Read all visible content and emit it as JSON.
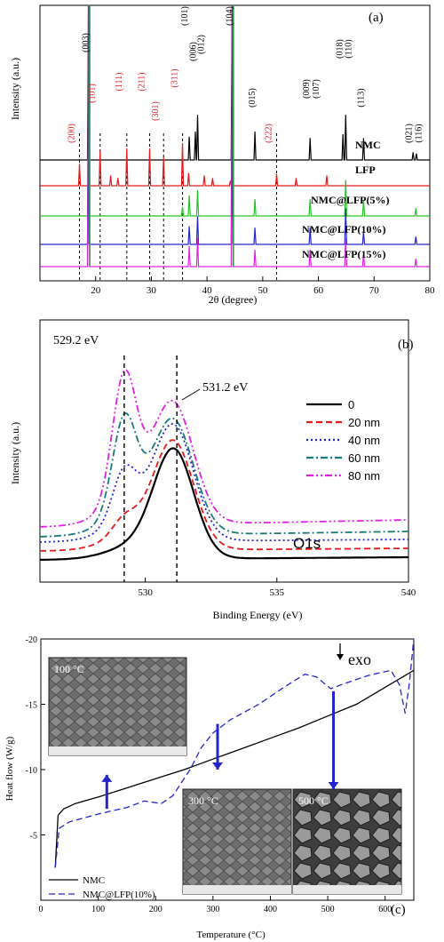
{
  "chart_data": [
    {
      "panel": "(a)",
      "type": "line",
      "xlabel": "2θ (degree)",
      "ylabel": "Intensity (a.u.)",
      "xlim": [
        10,
        80
      ],
      "xticks": [
        20,
        30,
        40,
        50,
        60,
        70,
        80
      ],
      "series": [
        {
          "name": "NMC",
          "color": "#000000",
          "offset": 0,
          "peaks": [
            [
              18.7,
              120
            ],
            [
              36.8,
              18
            ],
            [
              37.9,
              22
            ],
            [
              38.3,
              35
            ],
            [
              44.5,
              120
            ],
            [
              48.6,
              22
            ],
            [
              58.5,
              17
            ],
            [
              64.4,
              20
            ],
            [
              64.9,
              35
            ],
            [
              68.1,
              17
            ],
            [
              77.0,
              6
            ],
            [
              77.6,
              5
            ]
          ]
        },
        {
          "name": "LFP",
          "color": "#e41a1c",
          "offset": 1,
          "peaks": [
            [
              17.1,
              17
            ],
            [
              20.8,
              27
            ],
            [
              22.7,
              8
            ],
            [
              24.0,
              6
            ],
            [
              25.6,
              29
            ],
            [
              29.7,
              29
            ],
            [
              32.2,
              22
            ],
            [
              35.6,
              33
            ],
            [
              36.7,
              10
            ],
            [
              39.5,
              8
            ],
            [
              41.0,
              6
            ],
            [
              44.2,
              4
            ],
            [
              52.5,
              9
            ],
            [
              56.0,
              6
            ],
            [
              61.5,
              8
            ]
          ]
        },
        {
          "name": "NMC@LFP(5%)",
          "color": "#22c322",
          "offset": 2,
          "peaks": [
            [
              18.7,
              120
            ],
            [
              35.6,
              7
            ],
            [
              36.8,
              16
            ],
            [
              38.3,
              20
            ],
            [
              44.5,
              120
            ],
            [
              48.6,
              13
            ],
            [
              58.5,
              13
            ],
            [
              64.9,
              28
            ],
            [
              68.1,
              12
            ],
            [
              77.5,
              6
            ]
          ]
        },
        {
          "name": "NMC@LFP(10%)",
          "color": "#2424cc",
          "offset": 3,
          "peaks": [
            [
              18.7,
              120
            ],
            [
              36.8,
              14
            ],
            [
              38.3,
              22
            ],
            [
              44.5,
              120
            ],
            [
              48.6,
              13
            ],
            [
              58.5,
              13
            ],
            [
              64.9,
              28
            ],
            [
              68.1,
              10
            ],
            [
              77.5,
              6
            ]
          ]
        },
        {
          "name": "NMC@LFP(15%)",
          "color": "#e020e0",
          "offset": 4,
          "peaks": [
            [
              18.7,
              120
            ],
            [
              36.8,
              16
            ],
            [
              38.3,
              22
            ],
            [
              44.5,
              120
            ],
            [
              48.6,
              13
            ],
            [
              58.5,
              13
            ],
            [
              64.9,
              22
            ],
            [
              68.1,
              10
            ],
            [
              77.5,
              6
            ]
          ]
        }
      ],
      "peak_labels_black": [
        {
          "x": 18.7,
          "text": "(003)"
        },
        {
          "x": 36.5,
          "text": "(101)"
        },
        {
          "x": 38.0,
          "text": "(006)"
        },
        {
          "x": 39.4,
          "text": "(012)"
        },
        {
          "x": 44.5,
          "text": "(104)"
        },
        {
          "x": 48.6,
          "text": "(015)"
        },
        {
          "x": 58.3,
          "text": "(009)"
        },
        {
          "x": 60.1,
          "text": "(107)"
        },
        {
          "x": 64.3,
          "text": "(018)"
        },
        {
          "x": 65.9,
          "text": "(110)"
        },
        {
          "x": 68.1,
          "text": "(113)"
        },
        {
          "x": 76.7,
          "text": "(021)"
        },
        {
          "x": 78.5,
          "text": "(116)"
        }
      ],
      "peak_labels_red": [
        {
          "x": 17.1,
          "text": "(200)"
        },
        {
          "x": 20.8,
          "text": "(101)"
        },
        {
          "x": 25.6,
          "text": "(111)"
        },
        {
          "x": 29.7,
          "text": "(211)"
        },
        {
          "x": 32.2,
          "text": "(301)"
        },
        {
          "x": 35.6,
          "text": "(311)"
        },
        {
          "x": 52.5,
          "text": "(222)"
        }
      ],
      "dashed_lines_x": [
        17.1,
        20.8,
        25.6,
        29.7,
        32.2,
        35.6,
        52.5
      ]
    },
    {
      "panel": "(b)",
      "type": "line",
      "xlabel": "Binding Energy (eV)",
      "ylabel": "Intensity (a.u.)",
      "xlim": [
        526,
        540
      ],
      "xticks": [
        530,
        535,
        540
      ],
      "annotation_text": "O1s",
      "markers": [
        {
          "x": 529.2,
          "label": "529.2 eV"
        },
        {
          "x": 531.2,
          "label": "531.2 eV"
        }
      ],
      "legend_position": "right",
      "series": [
        {
          "name": "0",
          "color": "#000000",
          "dash": "solid",
          "low_peak": 0.0,
          "high_peak": 0.75
        },
        {
          "name": "20 nm",
          "color": "#e41a1c",
          "dash": "dashed",
          "low_peak": 0.12,
          "high_peak": 0.72
        },
        {
          "name": "40 nm",
          "color": "#2424cc",
          "dash": "dotted",
          "low_peak": 0.38,
          "high_peak": 0.75
        },
        {
          "name": "60 nm",
          "color": "#1a7a7a",
          "dash": "dashdot",
          "low_peak": 0.7,
          "high_peak": 0.72
        },
        {
          "name": "80 nm",
          "color": "#e020e0",
          "dash": "dashdotdot",
          "low_peak": 0.92,
          "high_peak": 0.75
        }
      ]
    },
    {
      "panel": "(c)",
      "type": "line",
      "xlabel": "Temperature (°C)",
      "ylabel": "Heat flow (W/g)",
      "xlim": [
        0,
        650
      ],
      "ylim": [
        0,
        -20
      ],
      "xticks": [
        0,
        100,
        200,
        300,
        400,
        500,
        600
      ],
      "yticks": [
        -20,
        -15,
        -10,
        -5
      ],
      "annotation_text": "exo",
      "legend_position": "bottom-left",
      "series": [
        {
          "name": "NMC",
          "color": "#000000",
          "dash": "solid",
          "points": [
            [
              25,
              -2.5
            ],
            [
              30,
              -6.5
            ],
            [
              40,
              -7.0
            ],
            [
              60,
              -7.4
            ],
            [
              100,
              -7.9
            ],
            [
              150,
              -8.6
            ],
            [
              200,
              -9.3
            ],
            [
              250,
              -10.0
            ],
            [
              300,
              -10.8
            ],
            [
              350,
              -11.6
            ],
            [
              400,
              -12.4
            ],
            [
              450,
              -13.2
            ],
            [
              500,
              -14.1
            ],
            [
              550,
              -15.0
            ],
            [
              600,
              -16.3
            ],
            [
              650,
              -17.6
            ]
          ]
        },
        {
          "name": "NMC@LFP(10%)",
          "color": "#2424cc",
          "dash": "dashed",
          "points": [
            [
              25,
              -2.5
            ],
            [
              32,
              -5.5
            ],
            [
              50,
              -6.0
            ],
            [
              100,
              -6.6
            ],
            [
              150,
              -7.1
            ],
            [
              180,
              -7.6
            ],
            [
              210,
              -7.4
            ],
            [
              230,
              -8.0
            ],
            [
              260,
              -10.0
            ],
            [
              280,
              -11.7
            ],
            [
              300,
              -12.8
            ],
            [
              330,
              -13.8
            ],
            [
              380,
              -15.0
            ],
            [
              420,
              -16.2
            ],
            [
              460,
              -17.3
            ],
            [
              480,
              -17.1
            ],
            [
              505,
              -16.2
            ],
            [
              530,
              -16.6
            ],
            [
              570,
              -17.2
            ],
            [
              610,
              -17.6
            ],
            [
              625,
              -16.5
            ],
            [
              635,
              -14.3
            ],
            [
              642,
              -16.5
            ],
            [
              650,
              -20.0
            ]
          ]
        }
      ],
      "insets": [
        {
          "label": "100 °C",
          "temperature": 100
        },
        {
          "label": "300 °C",
          "temperature": 300
        },
        {
          "label": "500 °C",
          "temperature": 500
        }
      ]
    }
  ]
}
